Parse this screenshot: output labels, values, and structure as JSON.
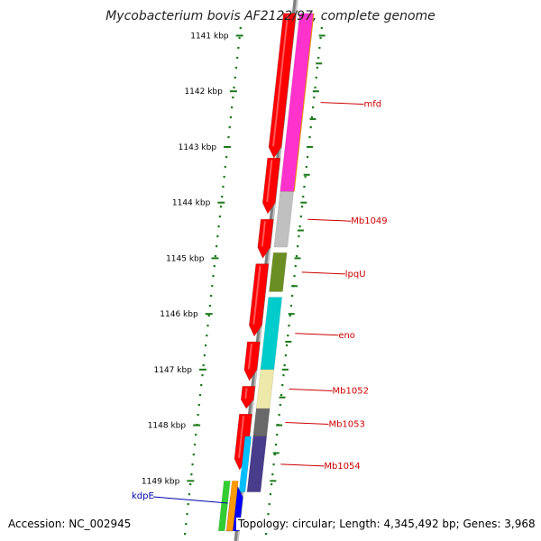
{
  "title": "Mycobacterium bovis AF2122/97, complete genome",
  "footer": {
    "accession": "Accession: NC_002945",
    "summary": "Topology: circular; Length: 4,345,492 bp; Genes: 3,968"
  },
  "map": {
    "start_kbp": 1140.6,
    "end_kbp": 1149.9,
    "ticks": [
      "1141 kbp",
      "1142 kbp",
      "1143 kbp",
      "1144 kbp",
      "1145 kbp",
      "1146 kbp",
      "1147 kbp",
      "1148 kbp",
      "1149 kbp"
    ],
    "tick_color": "#1a7a1a",
    "backbone_color": "#808080",
    "forward_color": "#ff0000"
  },
  "features": [
    {
      "name": "mfd",
      "start": 1140.6,
      "end": 1143.8,
      "strand": "-",
      "color": "#ff9900",
      "lane": 1,
      "label_color": "#cc0000"
    },
    {
      "name": "",
      "start": 1140.6,
      "end": 1143.8,
      "strand": "-",
      "color": "#ff33cc",
      "lane": 0,
      "label_color": "#cc0000"
    },
    {
      "name": "Mb1049",
      "start": 1143.8,
      "end": 1144.8,
      "strand": "-",
      "color": "#c0c0c0",
      "lane": 0,
      "label_color": "#cc0000"
    },
    {
      "name": "lpqU",
      "start": 1144.9,
      "end": 1145.6,
      "strand": "-",
      "color": "#6b8e23",
      "lane": 0,
      "label_color": "#cc0000"
    },
    {
      "name": "eno",
      "start": 1145.7,
      "end": 1147.0,
      "strand": "-",
      "color": "#00cccc",
      "lane": 0,
      "label_color": "#cc0000"
    },
    {
      "name": "Mb1052",
      "start": 1147.0,
      "end": 1147.7,
      "strand": "-",
      "color": "#eee8aa",
      "lane": 0,
      "label_color": "#cc0000"
    },
    {
      "name": "Mb1053",
      "start": 1147.7,
      "end": 1148.2,
      "strand": "-",
      "color": "#696969",
      "lane": 0,
      "label_color": "#cc0000"
    },
    {
      "name": "Mb1054",
      "start": 1148.2,
      "end": 1149.2,
      "strand": "-",
      "color": "#483d8b",
      "lane": 0,
      "label_color": "#cc0000"
    },
    {
      "name": "",
      "start": 1148.2,
      "end": 1149.2,
      "strand": "-",
      "color": "#00bfff",
      "lane": -1,
      "label_color": "#cc0000"
    },
    {
      "name": "kdpE",
      "start": 1149.1,
      "end": 1149.9,
      "strand": "+",
      "color": "#0000ff",
      "lane": 0,
      "label_color": "#0000aa"
    },
    {
      "name": "",
      "start": 1149.0,
      "end": 1149.9,
      "strand": "-",
      "color": "#32cd32",
      "lane": -3,
      "label_color": "#0000aa"
    },
    {
      "name": "",
      "start": 1149.0,
      "end": 1149.9,
      "strand": "-",
      "color": "#ff9900",
      "lane": -2,
      "label_color": "#0000aa"
    }
  ],
  "forward_genes": [
    {
      "start": 1140.6,
      "end": 1143.2
    },
    {
      "start": 1143.2,
      "end": 1144.2
    },
    {
      "start": 1144.3,
      "end": 1145.0
    },
    {
      "start": 1145.1,
      "end": 1146.4
    },
    {
      "start": 1146.5,
      "end": 1147.2
    },
    {
      "start": 1147.3,
      "end": 1147.7
    },
    {
      "start": 1147.8,
      "end": 1148.8
    }
  ]
}
